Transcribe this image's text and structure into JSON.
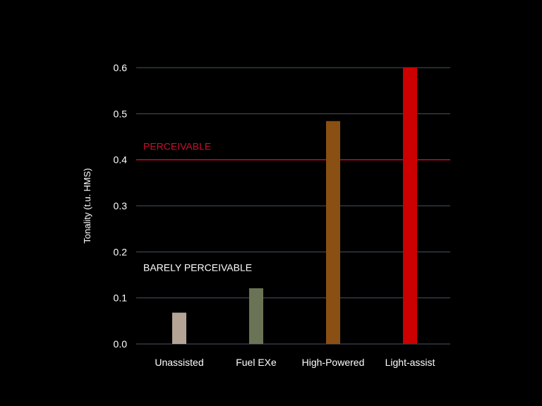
{
  "chart_data": {
    "type": "bar",
    "categories": [
      "Unassisted",
      "Fuel EXe",
      "High-Powered",
      "Light-assist"
    ],
    "values": [
      0.068,
      0.121,
      0.484,
      0.6
    ],
    "bar_colors": [
      "#b5a496",
      "#6b7356",
      "#8a4f12",
      "#cc0000"
    ],
    "ylabel": "Tonality (t.u. HMS)",
    "ylim": [
      0,
      0.6
    ],
    "yticks": [
      "0.0",
      "0.1",
      "0.2",
      "0.3",
      "0.4",
      "0.5",
      "0.6"
    ],
    "grid": true,
    "thresholds": [
      {
        "label": "PERCEIVABLE",
        "value": 0.4,
        "color": "#c8102e"
      },
      {
        "label": "BARELY PERCEIVABLE",
        "value": 0.2,
        "color": "#ffffff"
      }
    ],
    "colors": {
      "background": "#000000",
      "grid": "#4a5560",
      "text": "#ffffff",
      "threshold_line": "#c8102e"
    }
  }
}
